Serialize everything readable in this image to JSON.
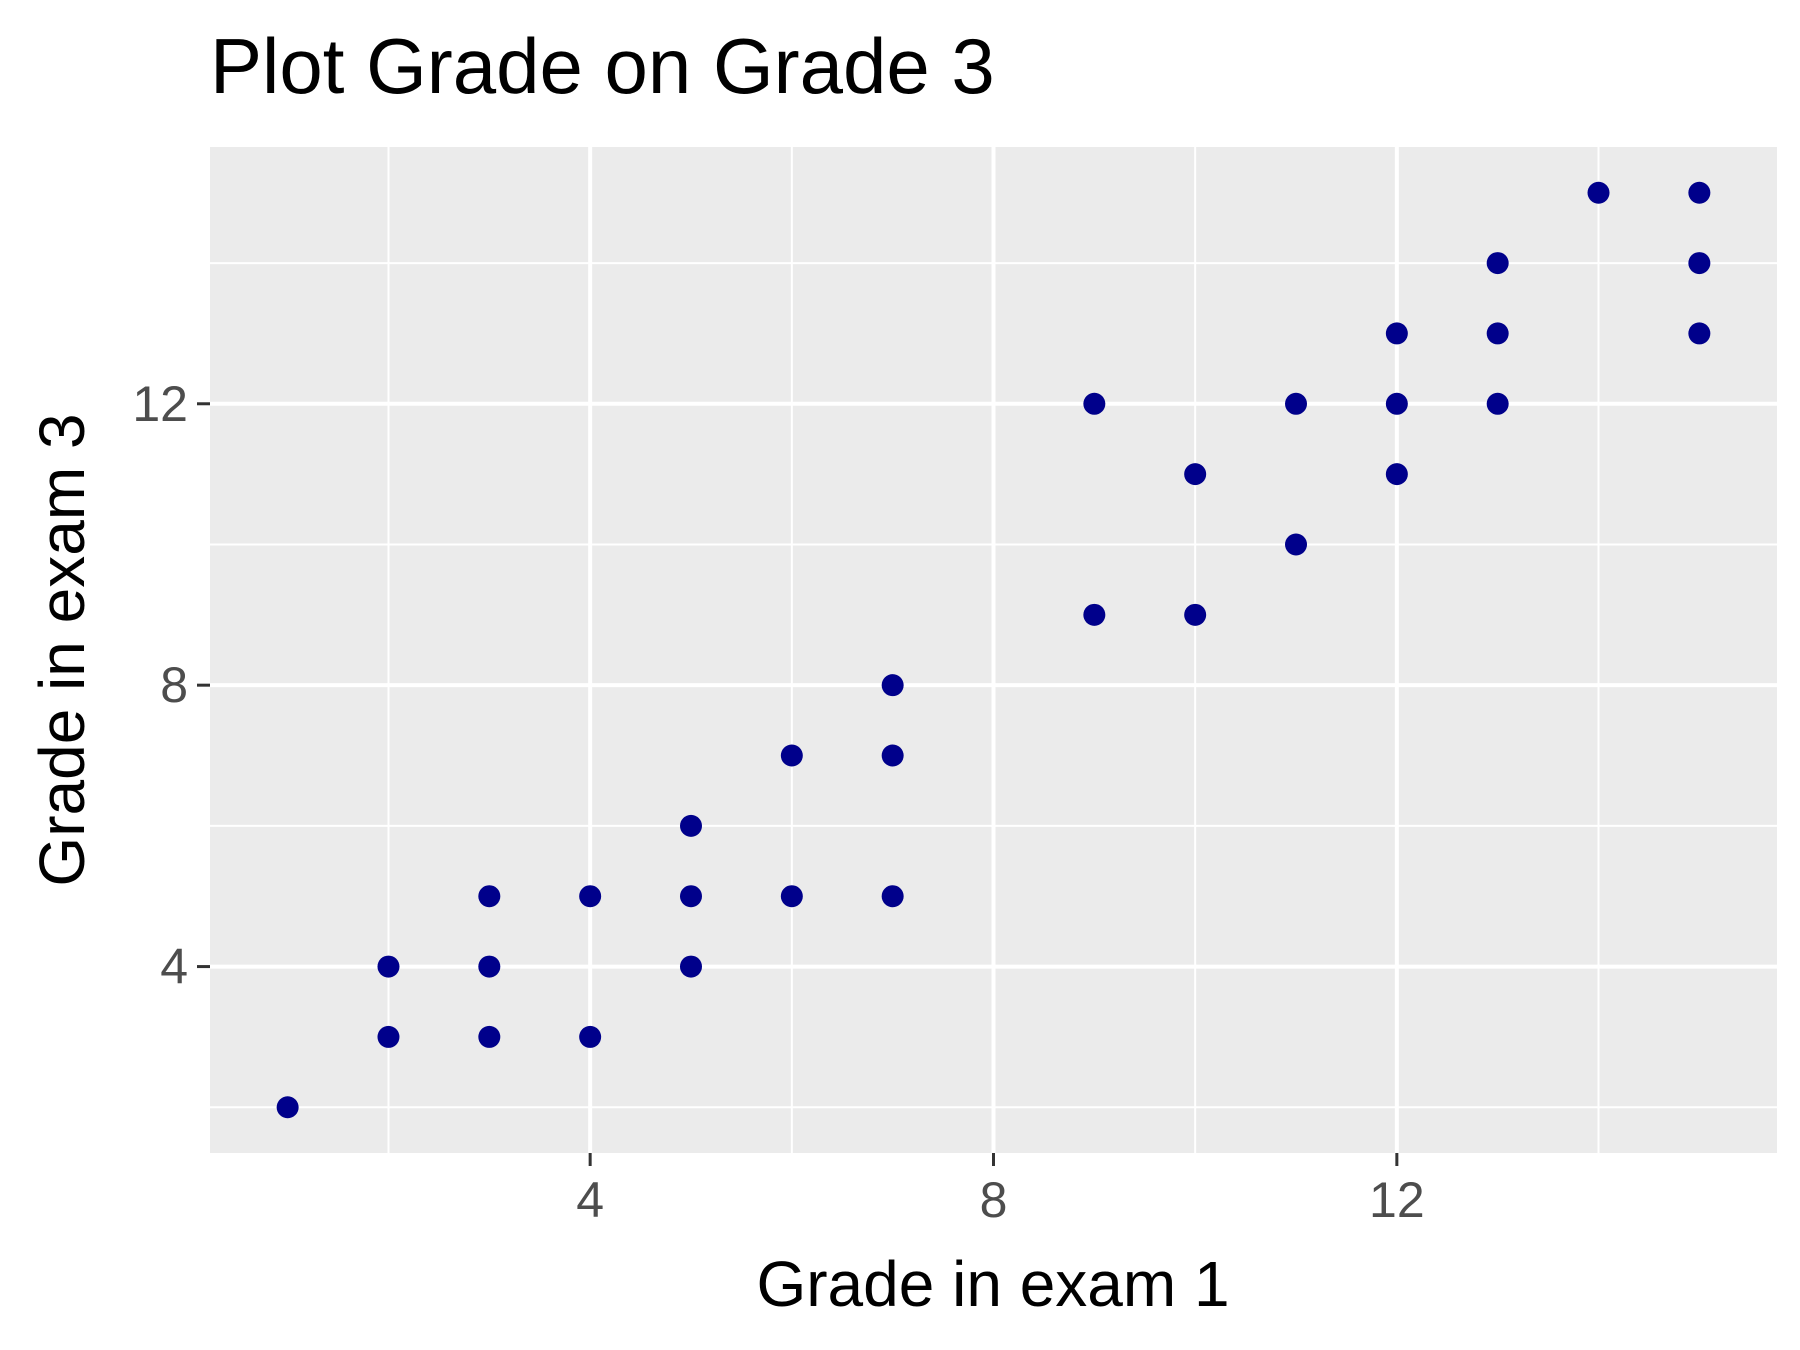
{
  "chart_data": {
    "type": "scatter",
    "title": "Plot Grade on Grade 3",
    "xlabel": "Grade in exam 1",
    "ylabel": "Grade in exam 3",
    "xlim": [
      0.23,
      15.77
    ],
    "ylim": [
      1.35,
      15.65
    ],
    "x_ticks": [
      4,
      8,
      12
    ],
    "y_ticks": [
      4,
      8,
      12
    ],
    "x_minor_ticks": [
      2,
      6,
      10,
      14
    ],
    "y_minor_ticks": [
      2,
      6,
      10,
      14
    ],
    "grid": true,
    "legend": "none",
    "colors": {
      "panel_background": "#ebebeb",
      "grid": "#ffffff",
      "point": "#00008b",
      "tick_label": "#4d4d4d",
      "tick_mark": "#333333"
    },
    "points": [
      {
        "x": 1,
        "y": 2
      },
      {
        "x": 2,
        "y": 3
      },
      {
        "x": 2,
        "y": 4
      },
      {
        "x": 3,
        "y": 3
      },
      {
        "x": 3,
        "y": 4
      },
      {
        "x": 3,
        "y": 5
      },
      {
        "x": 4,
        "y": 3
      },
      {
        "x": 4,
        "y": 5
      },
      {
        "x": 5,
        "y": 4
      },
      {
        "x": 5,
        "y": 5
      },
      {
        "x": 5,
        "y": 6
      },
      {
        "x": 6,
        "y": 5
      },
      {
        "x": 6,
        "y": 7
      },
      {
        "x": 7,
        "y": 5
      },
      {
        "x": 7,
        "y": 7
      },
      {
        "x": 7,
        "y": 8
      },
      {
        "x": 9,
        "y": 9
      },
      {
        "x": 9,
        "y": 12
      },
      {
        "x": 10,
        "y": 9
      },
      {
        "x": 10,
        "y": 11
      },
      {
        "x": 11,
        "y": 10
      },
      {
        "x": 11,
        "y": 12
      },
      {
        "x": 12,
        "y": 11
      },
      {
        "x": 12,
        "y": 12
      },
      {
        "x": 12,
        "y": 13
      },
      {
        "x": 13,
        "y": 12
      },
      {
        "x": 13,
        "y": 13
      },
      {
        "x": 13,
        "y": 14
      },
      {
        "x": 14,
        "y": 15
      },
      {
        "x": 15,
        "y": 13
      },
      {
        "x": 15,
        "y": 14
      },
      {
        "x": 15,
        "y": 15
      }
    ]
  }
}
